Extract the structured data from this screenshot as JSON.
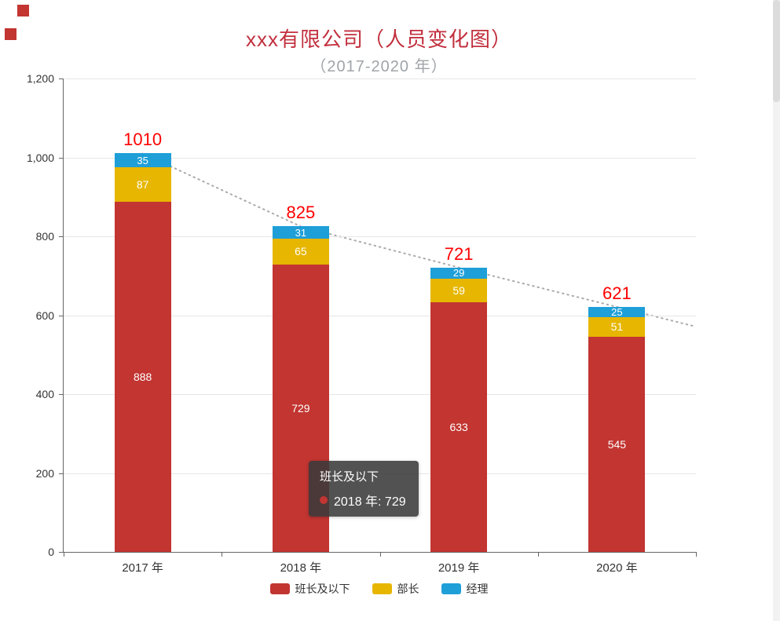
{
  "title": "xxx有限公司（人员变化图）",
  "subtitle": "（2017-2020 年）",
  "colors": {
    "title": "#c2303e",
    "subtitle": "#a0a4a8",
    "total_label": "#ff0000",
    "trendline": "#aaaaaa",
    "axis": "#666666",
    "gridline": "#e6e6e6"
  },
  "tooltip": {
    "series_name": "班长及以下",
    "entry": "2018 年: 729",
    "dot_color": "#c23531"
  },
  "chart_data": {
    "type": "bar",
    "stacked": true,
    "title": "xxx有限公司（人员变化图）",
    "subtitle": "（2017-2020 年）",
    "categories": [
      "2017 年",
      "2018 年",
      "2019 年",
      "2020 年"
    ],
    "series": [
      {
        "name": "班长及以下",
        "color": "#c23531",
        "values": [
          888,
          729,
          633,
          545
        ]
      },
      {
        "name": "部长",
        "color": "#e6b600",
        "values": [
          87,
          65,
          59,
          51
        ]
      },
      {
        "name": "经理",
        "color": "#1e9fd8",
        "values": [
          35,
          31,
          29,
          25
        ]
      }
    ],
    "totals": [
      1010,
      825,
      721,
      621
    ],
    "ylim": [
      0,
      1200
    ],
    "ytick_values": [
      0,
      200,
      400,
      600,
      800,
      1000,
      1200
    ],
    "ytick_labels": [
      "0",
      "200",
      "400",
      "600",
      "800",
      "1,000",
      "1,200"
    ],
    "grid": true,
    "trendline": "dotted line through stacked-bar totals, extended to right edge",
    "legend_position": "bottom",
    "legend": [
      "班长及以下",
      "部长",
      "经理"
    ]
  }
}
